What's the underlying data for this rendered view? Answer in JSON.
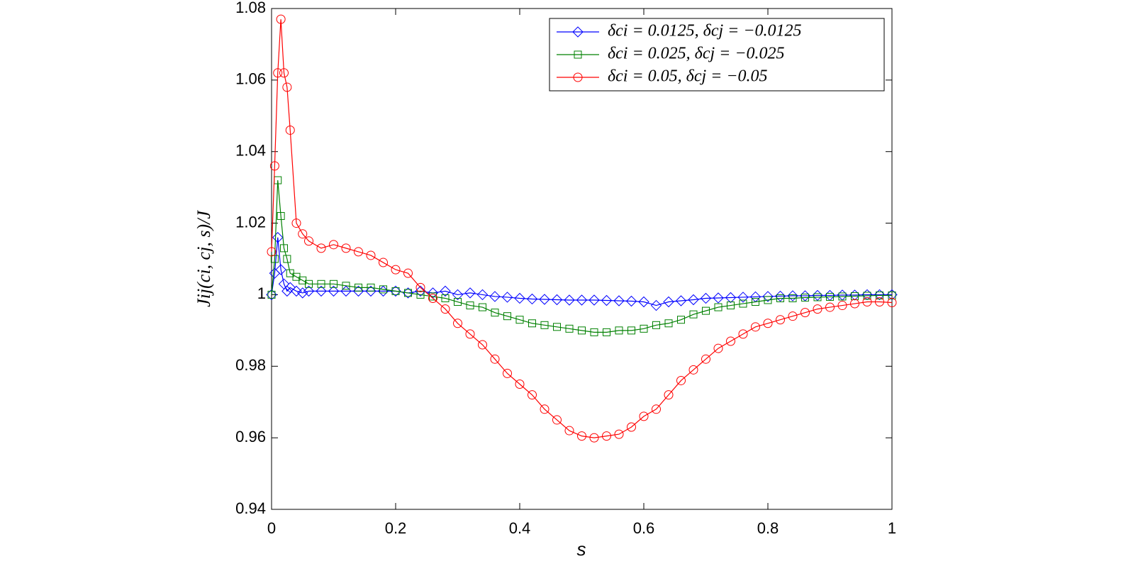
{
  "chart_data": {
    "type": "line",
    "x_label": "s",
    "y_label": "Jij(ci, cj, s)/J",
    "legend": "northeast",
    "grid": false,
    "xlim": [
      0,
      1
    ],
    "xticks": [
      0,
      0.2,
      0.4,
      0.6,
      0.8,
      1
    ],
    "ylim": [
      0.94,
      1.08
    ],
    "yticks": [
      0.94,
      0.96,
      0.98,
      1,
      1.02,
      1.04,
      1.06,
      1.08
    ],
    "x": [
      0,
      0.005,
      0.01,
      0.015,
      0.02,
      0.025,
      0.03,
      0.04,
      0.05,
      0.06,
      0.08,
      0.1,
      0.12,
      0.14,
      0.16,
      0.18,
      0.2,
      0.22,
      0.24,
      0.26,
      0.28,
      0.3,
      0.32,
      0.34,
      0.36,
      0.38,
      0.4,
      0.42,
      0.44,
      0.46,
      0.48,
      0.5,
      0.52,
      0.54,
      0.56,
      0.58,
      0.6,
      0.62,
      0.64,
      0.66,
      0.68,
      0.7,
      0.72,
      0.74,
      0.76,
      0.78,
      0.8,
      0.82,
      0.84,
      0.86,
      0.88,
      0.9,
      0.92,
      0.94,
      0.96,
      0.98,
      1
    ],
    "series": [
      {
        "name": "δci = 0.0125, δcj = −0.0125",
        "color": "#0000ff",
        "marker": "diamond",
        "values": [
          1.0,
          1.006,
          1.016,
          1.007,
          1.003,
          1.001,
          1.002,
          1.001,
          1.0005,
          1.001,
          1.001,
          1.001,
          1.001,
          1.001,
          1.001,
          1.001,
          1.001,
          1.0005,
          1.001,
          1.0005,
          1.001,
          1.0,
          1.0005,
          1.0,
          0.9995,
          0.9993,
          0.999,
          0.9988,
          0.9987,
          0.9986,
          0.9985,
          0.9985,
          0.9985,
          0.9984,
          0.9983,
          0.9982,
          0.998,
          0.997,
          0.998,
          0.9983,
          0.9986,
          0.999,
          0.9991,
          0.9992,
          0.9993,
          0.9994,
          0.9995,
          0.9996,
          0.9997,
          0.9997,
          0.9998,
          0.9998,
          0.9999,
          0.9999,
          1.0,
          1.0,
          1.0
        ]
      },
      {
        "name": "δci = 0.025, δcj = −0.025",
        "color": "#008000",
        "marker": "square",
        "values": [
          1.0,
          1.01,
          1.032,
          1.022,
          1.013,
          1.01,
          1.006,
          1.005,
          1.004,
          1.003,
          1.003,
          1.003,
          1.0025,
          1.002,
          1.002,
          1.0015,
          1.001,
          1.0005,
          1.0,
          0.9995,
          0.999,
          0.998,
          0.997,
          0.9965,
          0.995,
          0.994,
          0.993,
          0.992,
          0.9915,
          0.991,
          0.9905,
          0.99,
          0.9895,
          0.9895,
          0.99,
          0.99,
          0.9905,
          0.9915,
          0.992,
          0.993,
          0.9945,
          0.9955,
          0.9965,
          0.997,
          0.9975,
          0.998,
          0.9985,
          0.999,
          0.999,
          0.9992,
          0.9993,
          0.9994,
          0.9995,
          0.9996,
          0.9997,
          0.9998,
          0.9998
        ]
      },
      {
        "name": "δci = 0.05, δcj = −0.05",
        "color": "#ff0000",
        "marker": "circle",
        "values": [
          1.012,
          1.036,
          1.062,
          1.077,
          1.062,
          1.058,
          1.046,
          1.02,
          1.017,
          1.015,
          1.013,
          1.014,
          1.013,
          1.012,
          1.011,
          1.009,
          1.007,
          1.006,
          1.002,
          0.999,
          0.996,
          0.992,
          0.989,
          0.986,
          0.982,
          0.978,
          0.975,
          0.972,
          0.968,
          0.965,
          0.962,
          0.9605,
          0.96,
          0.9605,
          0.961,
          0.963,
          0.966,
          0.968,
          0.972,
          0.976,
          0.979,
          0.982,
          0.985,
          0.987,
          0.989,
          0.991,
          0.992,
          0.993,
          0.994,
          0.995,
          0.996,
          0.9965,
          0.997,
          0.9975,
          0.998,
          0.998,
          0.9978
        ]
      }
    ]
  }
}
